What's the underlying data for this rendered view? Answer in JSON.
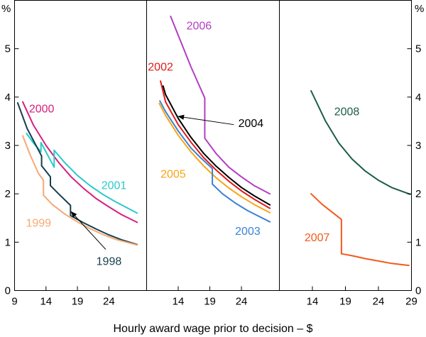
{
  "chart_data": {
    "type": "line",
    "title": "",
    "xlabel": "Hourly award wage prior to decision – $",
    "ylabel": "%",
    "ylim": [
      0,
      6
    ],
    "yticks": [
      "0",
      "1",
      "2",
      "3",
      "4",
      "5"
    ],
    "left_unit": "%",
    "right_unit": "%",
    "panels": [
      {
        "name": "panel-1",
        "xlim": [
          9,
          30
        ],
        "xticks": [
          "9",
          "14",
          "19",
          "24"
        ],
        "series": [
          {
            "name": "2000",
            "color": "#d6207f",
            "points": [
              [
                10.3,
                3.9
              ],
              [
                12,
                3.42
              ],
              [
                14,
                3.0
              ],
              [
                16,
                2.65
              ],
              [
                18,
                2.35
              ],
              [
                20,
                2.11
              ],
              [
                22,
                1.9
              ],
              [
                24,
                1.73
              ],
              [
                26,
                1.57
              ],
              [
                28.5,
                1.41
              ]
            ]
          },
          {
            "name": "2001",
            "color": "#2cc9cc",
            "points": [
              [
                10.9,
                3.25
              ],
              [
                12,
                3.05
              ],
              [
                13.2,
                2.87
              ],
              [
                13.2,
                3.06
              ],
              [
                15.3,
                2.55
              ],
              [
                15.3,
                2.9
              ],
              [
                17,
                2.64
              ],
              [
                19,
                2.38
              ],
              [
                21,
                2.17
              ],
              [
                23,
                1.99
              ],
              [
                25,
                1.84
              ],
              [
                28.5,
                1.6
              ]
            ]
          },
          {
            "name": "1998",
            "color": "#163f4e",
            "points": [
              [
                9.5,
                3.88
              ],
              [
                11,
                3.35
              ],
              [
                13.3,
                2.78
              ],
              [
                13.3,
                2.58
              ],
              [
                14.7,
                2.35
              ],
              [
                14.7,
                2.17
              ],
              [
                16,
                2.0
              ],
              [
                17.9,
                1.76
              ],
              [
                17.9,
                1.55
              ],
              [
                20,
                1.4
              ],
              [
                22,
                1.27
              ],
              [
                24,
                1.15
              ],
              [
                26,
                1.05
              ],
              [
                28.5,
                0.95
              ]
            ]
          },
          {
            "name": "1999",
            "color": "#f5a973",
            "points": [
              [
                10.3,
                3.2
              ],
              [
                11.5,
                2.8
              ],
              [
                12.8,
                2.42
              ],
              [
                13.6,
                2.28
              ],
              [
                13.6,
                1.97
              ],
              [
                15,
                1.78
              ],
              [
                17,
                1.58
              ],
              [
                19,
                1.42
              ],
              [
                21,
                1.28
              ],
              [
                23,
                1.16
              ],
              [
                25,
                1.06
              ],
              [
                28.5,
                0.94
              ]
            ]
          }
        ],
        "labels": [
          {
            "text": "2000",
            "series": "2000",
            "x": 11.3,
            "y": 3.68
          },
          {
            "text": "2001",
            "series": "2001",
            "x": 22.8,
            "y": 2.1
          },
          {
            "text": "1999",
            "series": "1999",
            "x": 10.8,
            "y": 1.32
          },
          {
            "text": "1998",
            "series": "1998",
            "x": 22.0,
            "y": 0.53
          }
        ],
        "annotations": [
          {
            "text": "",
            "from": [
              23.5,
              0.85
            ],
            "to": [
              18.0,
              1.63
            ]
          }
        ]
      },
      {
        "name": "panel-2",
        "xlim": [
          9,
          30
        ],
        "xticks": [
          "14",
          "19",
          "24"
        ],
        "series": [
          {
            "name": "2006",
            "color": "#b23fc1",
            "points": [
              [
                12.8,
                5.67
              ],
              [
                14,
                5.28
              ],
              [
                16,
                4.63
              ],
              [
                18.2,
                3.98
              ],
              [
                18.2,
                3.15
              ],
              [
                20,
                2.83
              ],
              [
                22,
                2.55
              ],
              [
                24,
                2.35
              ],
              [
                26,
                2.17
              ],
              [
                28.5,
                2.0
              ]
            ]
          },
          {
            "name": "2002",
            "color": "#e01a1a",
            "points": [
              [
                11.2,
                4.33
              ],
              [
                12,
                3.9
              ],
              [
                14,
                3.43
              ],
              [
                16,
                3.07
              ],
              [
                18,
                2.75
              ],
              [
                20,
                2.49
              ],
              [
                22,
                2.26
              ],
              [
                24,
                2.06
              ],
              [
                26,
                1.89
              ],
              [
                28.5,
                1.7
              ]
            ]
          },
          {
            "name": "2004",
            "color": "#000000",
            "points": [
              [
                11.6,
                4.23
              ],
              [
                12,
                4.05
              ],
              [
                14,
                3.56
              ],
              [
                16,
                3.17
              ],
              [
                18,
                2.84
              ],
              [
                20,
                2.57
              ],
              [
                22,
                2.34
              ],
              [
                24,
                2.13
              ],
              [
                26,
                1.96
              ],
              [
                28.5,
                1.77
              ]
            ]
          },
          {
            "name": "2005",
            "color": "#f6a516",
            "points": [
              [
                11,
                3.87
              ],
              [
                12,
                3.62
              ],
              [
                14,
                3.21
              ],
              [
                16,
                2.87
              ],
              [
                18,
                2.58
              ],
              [
                20,
                2.33
              ],
              [
                22,
                2.12
              ],
              [
                24,
                1.94
              ],
              [
                26,
                1.78
              ],
              [
                28.5,
                1.61
              ]
            ]
          },
          {
            "name": "2003",
            "color": "#3b82d4",
            "points": [
              [
                11.1,
                3.92
              ],
              [
                12,
                3.7
              ],
              [
                14,
                3.3
              ],
              [
                16,
                2.95
              ],
              [
                17.5,
                2.75
              ],
              [
                19.4,
                2.52
              ],
              [
                19.4,
                2.2
              ],
              [
                21,
                2.0
              ],
              [
                23,
                1.81
              ],
              [
                25,
                1.65
              ],
              [
                28.5,
                1.42
              ]
            ]
          }
        ],
        "labels": [
          {
            "text": "2006",
            "series": "2006",
            "x": 15.3,
            "y": 5.4
          },
          {
            "text": "2002",
            "series": "2002",
            "x": 9.2,
            "y": 4.55
          },
          {
            "text": "2004",
            "series": "2004",
            "x": 23.5,
            "y": 3.38
          },
          {
            "text": "2005",
            "series": "2005",
            "x": 11.2,
            "y": 2.33
          },
          {
            "text": "2003",
            "series": "2003",
            "x": 23.0,
            "y": 1.15
          }
        ],
        "annotations": [
          {
            "text": "",
            "from": [
              22.8,
              3.43
            ],
            "to": [
              14.0,
              3.6
            ]
          }
        ]
      },
      {
        "name": "panel-3",
        "xlim": [
          9,
          29
        ],
        "xticks": [
          "14",
          "19",
          "24",
          "29"
        ],
        "series": [
          {
            "name": "2008",
            "color": "#1c5c4a",
            "points": [
              [
                13.8,
                4.13
              ],
              [
                16,
                3.5
              ],
              [
                18,
                3.05
              ],
              [
                20,
                2.72
              ],
              [
                22,
                2.47
              ],
              [
                24,
                2.28
              ],
              [
                26,
                2.13
              ],
              [
                28.8,
                1.99
              ]
            ]
          },
          {
            "name": "2007",
            "color": "#f25a1c",
            "points": [
              [
                13.8,
                2.0
              ],
              [
                15.5,
                1.78
              ],
              [
                18.4,
                1.47
              ],
              [
                18.4,
                0.76
              ],
              [
                20,
                0.72
              ],
              [
                22,
                0.66
              ],
              [
                24,
                0.61
              ],
              [
                26,
                0.56
              ],
              [
                28.6,
                0.52
              ]
            ]
          }
        ],
        "labels": [
          {
            "text": "2008",
            "series": "2008",
            "x": 17.3,
            "y": 3.62
          },
          {
            "text": "2007",
            "series": "2007",
            "x": 12.8,
            "y": 1.02
          }
        ],
        "annotations": []
      }
    ]
  }
}
